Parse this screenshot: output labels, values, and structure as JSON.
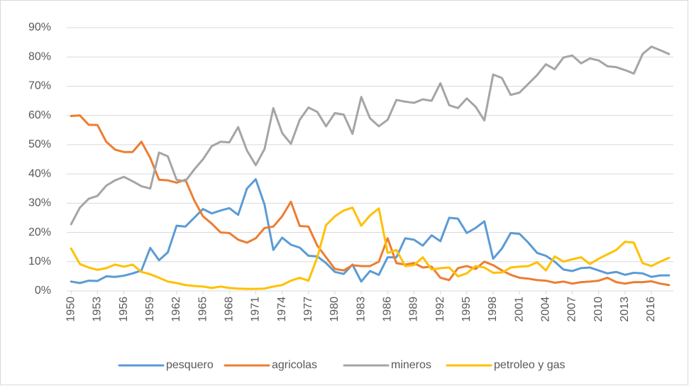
{
  "chart_data": {
    "type": "line",
    "x": [
      1950,
      1951,
      1952,
      1953,
      1954,
      1955,
      1956,
      1957,
      1958,
      1959,
      1960,
      1961,
      1962,
      1963,
      1964,
      1965,
      1966,
      1967,
      1968,
      1969,
      1970,
      1971,
      1972,
      1973,
      1974,
      1975,
      1976,
      1977,
      1978,
      1979,
      1980,
      1981,
      1982,
      1983,
      1984,
      1985,
      1986,
      1987,
      1988,
      1989,
      1990,
      1991,
      1992,
      1993,
      1994,
      1995,
      1996,
      1997,
      1998,
      1999,
      2000,
      2001,
      2002,
      2003,
      2004,
      2005,
      2006,
      2007,
      2008,
      2009,
      2010,
      2011,
      2012,
      2013,
      2014,
      2015,
      2016,
      2017,
      2018
    ],
    "xlim": [
      1949.5,
      2018.5
    ],
    "xticks": [
      1950,
      1953,
      1956,
      1959,
      1962,
      1965,
      1968,
      1971,
      1974,
      1977,
      1980,
      1983,
      1986,
      1989,
      1992,
      1995,
      1998,
      2001,
      2004,
      2007,
      2010,
      2013,
      2016
    ],
    "ylim": [
      0,
      90
    ],
    "yticks": [
      {
        "value": 0,
        "label": "0%"
      },
      {
        "value": 10,
        "label": "10%"
      },
      {
        "value": 20,
        "label": "20%"
      },
      {
        "value": 30,
        "label": "30%"
      },
      {
        "value": 40,
        "label": "40%"
      },
      {
        "value": 50,
        "label": "50%"
      },
      {
        "value": 60,
        "label": "60%"
      },
      {
        "value": 70,
        "label": "70%"
      },
      {
        "value": 80,
        "label": "80%"
      },
      {
        "value": 90,
        "label": "90%"
      }
    ],
    "grid": true,
    "legend": "bottom",
    "series": [
      {
        "name": "pesquero",
        "color": "#5b9bd5",
        "values": [
          3.2,
          2.7,
          3.5,
          3.4,
          5,
          4.8,
          5.2,
          6,
          7,
          14.7,
          10.5,
          13.2,
          22.3,
          22,
          25,
          28,
          26.5,
          27.5,
          28.3,
          26,
          35,
          38.2,
          29.5,
          14,
          18.2,
          15.8,
          14.8,
          12,
          11.8,
          9.5,
          6.5,
          5.8,
          9,
          3.2,
          6.8,
          5.5,
          11.5,
          11.5,
          18,
          17.5,
          15.5,
          19,
          17,
          25,
          24.7,
          19.8,
          21.5,
          23.8,
          11,
          14.5,
          19.8,
          19.5,
          16.5,
          13,
          12,
          10,
          7.3,
          6.8,
          7.8,
          8,
          7,
          6,
          6.5,
          5.5,
          6.2,
          6,
          4.8,
          5.3,
          5.3
        ]
      },
      {
        "name": "agricolas",
        "color": "#ed7d31",
        "values": [
          59.8,
          60,
          56.8,
          56.7,
          51,
          48.3,
          47.5,
          47.5,
          51,
          45.5,
          38,
          37.8,
          37,
          38,
          31,
          25.5,
          23,
          20,
          19.8,
          17.5,
          16.5,
          18,
          21.5,
          22,
          25.5,
          30.5,
          22.2,
          22,
          15.5,
          11.5,
          7.5,
          7,
          8.8,
          8.5,
          8.5,
          10,
          18,
          9.5,
          9,
          9.5,
          8,
          8.3,
          4.5,
          3.7,
          7.8,
          8.5,
          7.5,
          10,
          8.8,
          7,
          5.5,
          4.5,
          4.2,
          3.7,
          3.5,
          2.8,
          3.2,
          2.5,
          3,
          3.2,
          3.5,
          4.5,
          3,
          2.5,
          3,
          3,
          3.3,
          2.5,
          2
        ]
      },
      {
        "name": "mineros",
        "color": "#a5a5a5",
        "values": [
          22.8,
          28.5,
          31.5,
          32.5,
          36,
          37.8,
          39,
          37.5,
          35.8,
          35,
          47.3,
          46,
          38,
          37.5,
          41.5,
          45,
          49.5,
          51,
          50.8,
          56,
          48,
          43,
          48.5,
          62.5,
          54,
          50.3,
          58.5,
          62.7,
          61.2,
          56.3,
          60.8,
          60.3,
          53.7,
          66.3,
          59,
          56.3,
          58.5,
          65.3,
          64.7,
          64.3,
          65.5,
          65,
          71,
          63.5,
          62.5,
          65.8,
          63,
          58.3,
          74,
          72.8,
          67,
          67.8,
          70.8,
          73.8,
          77.5,
          75.8,
          79.8,
          80.5,
          77.8,
          79.5,
          78.8,
          76.8,
          76.5,
          75.5,
          74.3,
          81,
          83.5,
          82.3,
          81
        ]
      },
      {
        "name": "petroleo y gas",
        "color": "#ffc000",
        "values": [
          14.5,
          9.2,
          8,
          7.2,
          7.8,
          9,
          8.3,
          9,
          6.5,
          5.7,
          4.5,
          3.2,
          2.7,
          2,
          1.7,
          1.5,
          1,
          1.5,
          1,
          0.8,
          0.7,
          0.7,
          0.8,
          1.5,
          2,
          3.5,
          4.5,
          3.5,
          11.5,
          22.5,
          25.5,
          27.5,
          28.5,
          22.3,
          25.8,
          28.2,
          13,
          14,
          8.5,
          8.8,
          11.5,
          7.3,
          7.8,
          8,
          5,
          6,
          8.5,
          8,
          6.2,
          6.3,
          8,
          8.3,
          8.5,
          9.8,
          7,
          11.8,
          10,
          10.8,
          11.5,
          9.2,
          11,
          12.5,
          14,
          16.8,
          16.5,
          9.5,
          8.5,
          10,
          11.3
        ]
      }
    ]
  }
}
